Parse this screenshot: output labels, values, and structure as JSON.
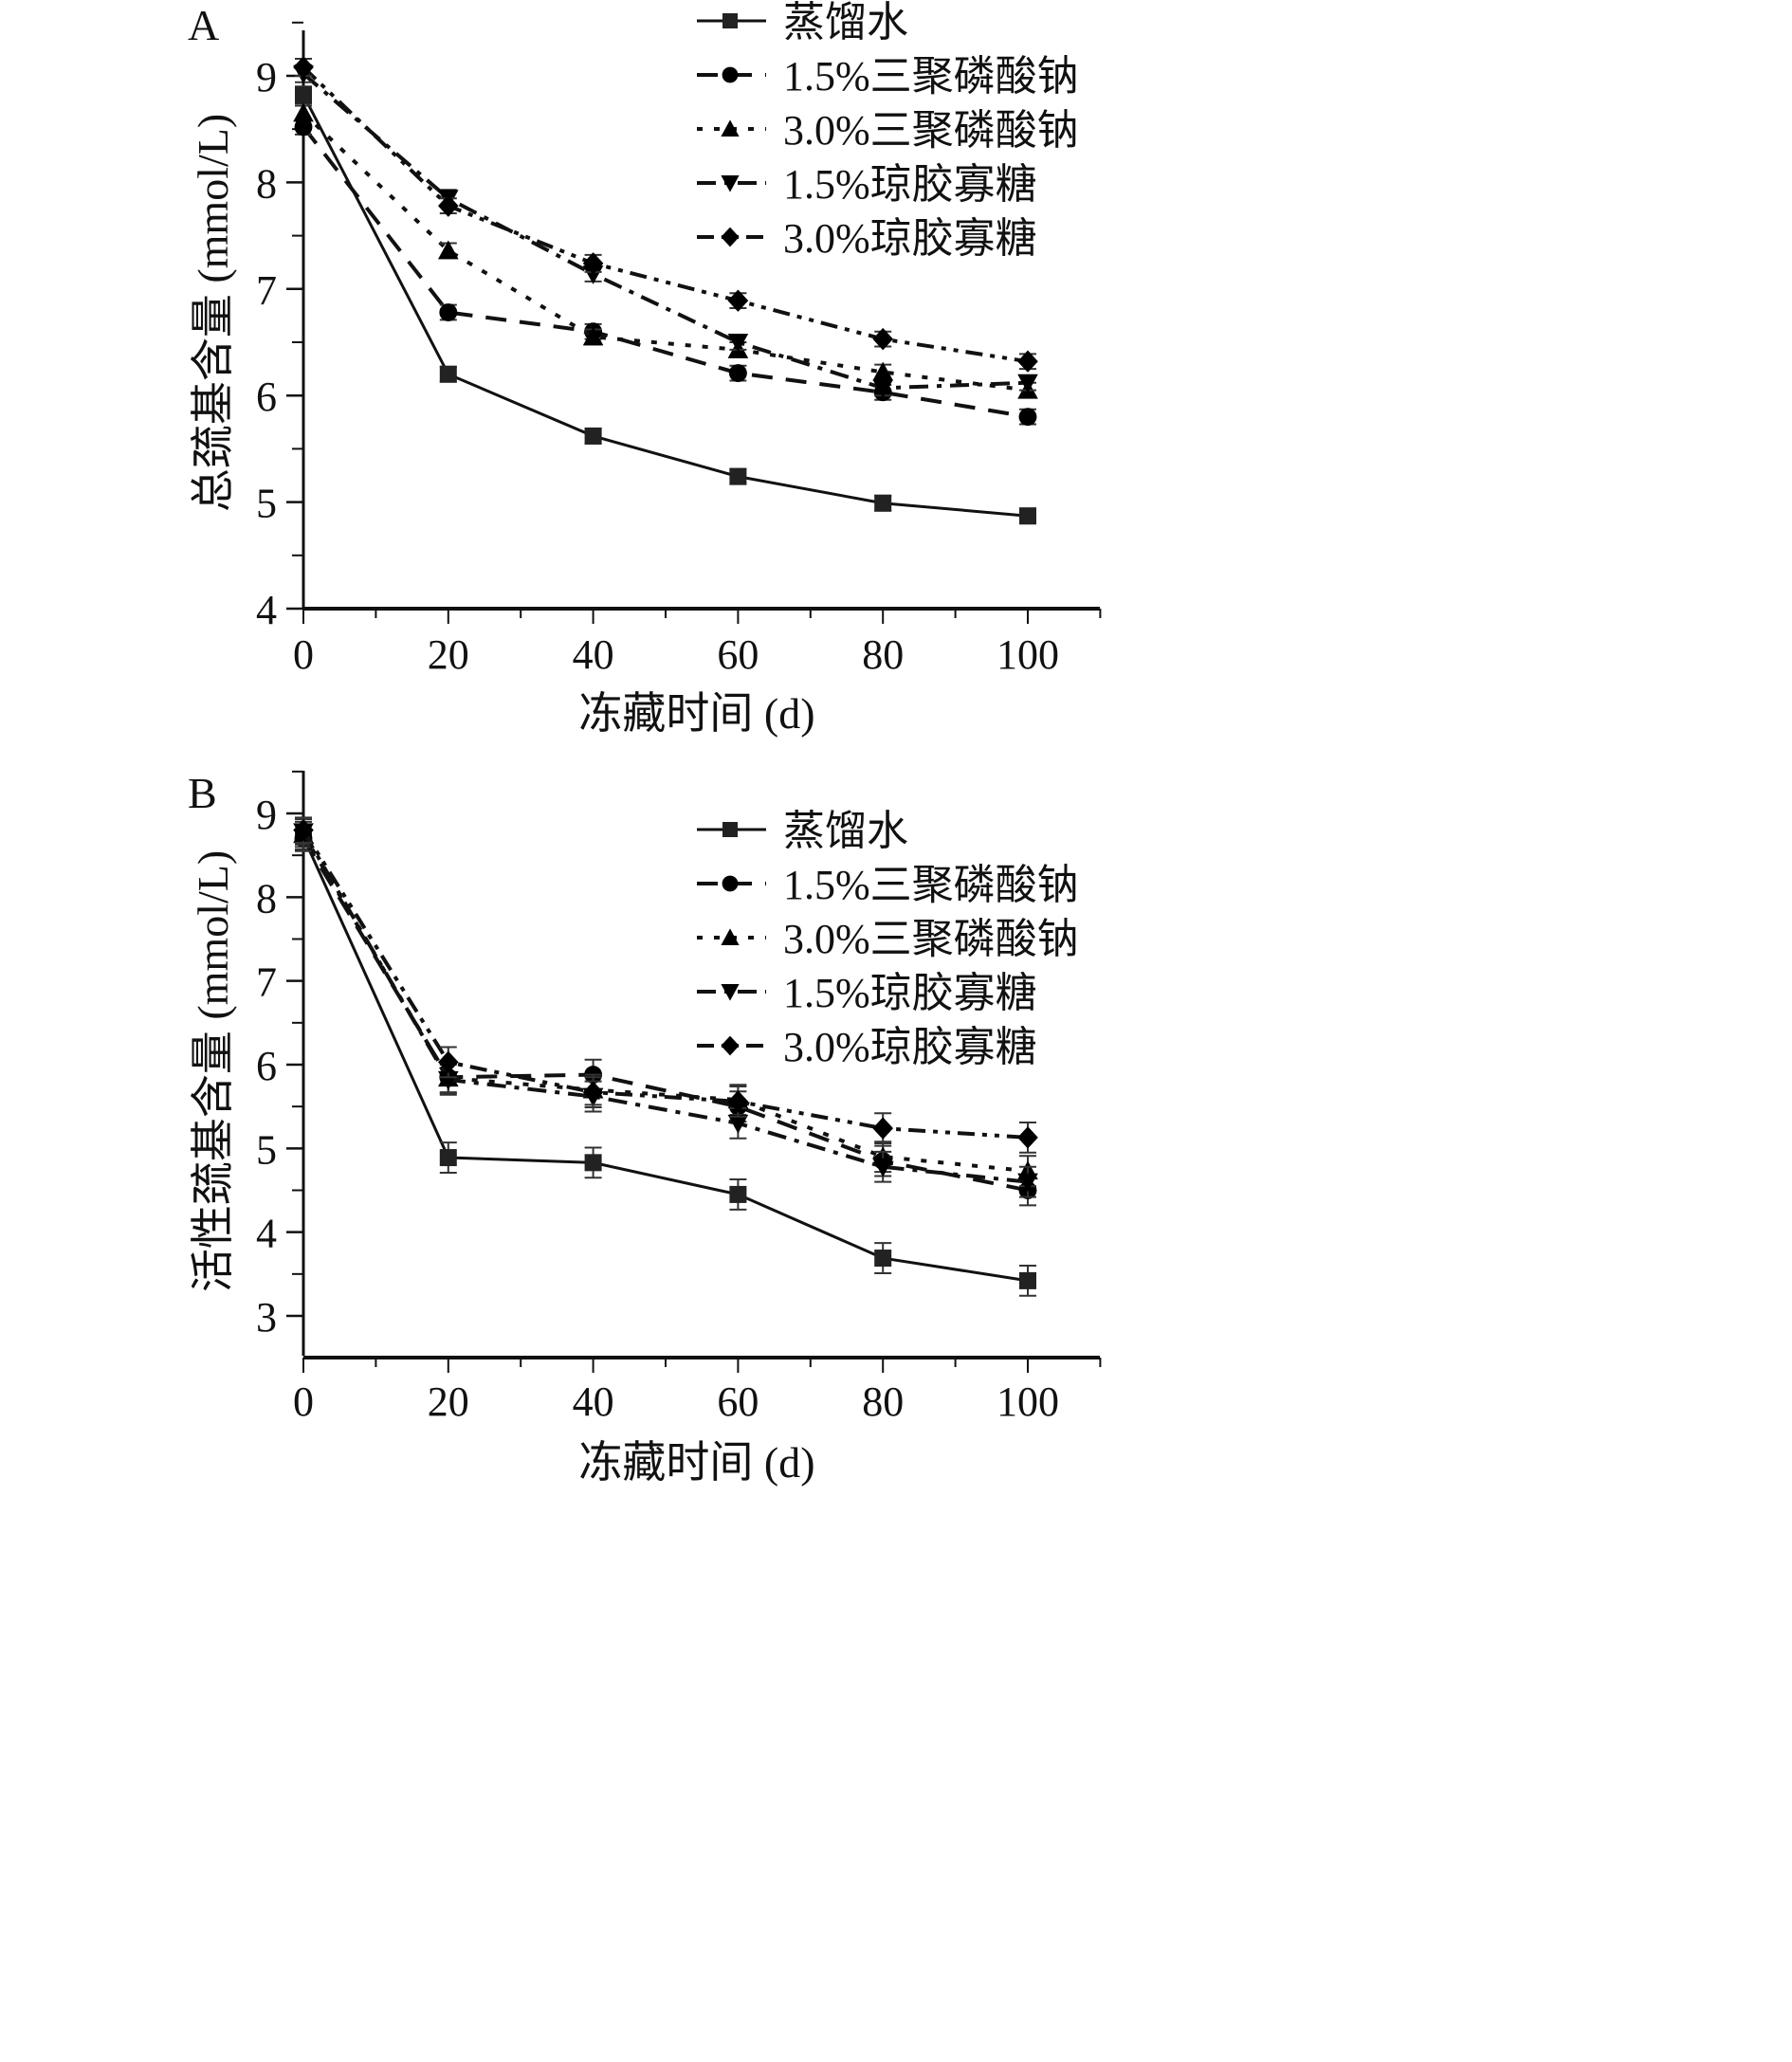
{
  "chart_data": [
    {
      "panel": "A",
      "type": "line",
      "title": "",
      "xlabel": "冻藏时间 (d)",
      "ylabel": "总巯基含量 (mmol/L)",
      "xlim": [
        0,
        110
      ],
      "ylim": [
        4,
        9.5
      ],
      "x_ticks": [
        0,
        20,
        40,
        60,
        80,
        100
      ],
      "y_ticks": [
        4,
        5,
        6,
        7,
        8,
        9
      ],
      "grid": false,
      "legend_position": "top-right",
      "x": [
        0,
        20,
        40,
        60,
        80,
        100
      ],
      "series": [
        {
          "name": "蒸馏水",
          "marker": "square",
          "line": "solid",
          "values": [
            8.82,
            6.2,
            5.62,
            5.24,
            4.99,
            4.87
          ],
          "errors": [
            0.08,
            0.07,
            0.07,
            0.07,
            0.07,
            0.07
          ]
        },
        {
          "name": "1.5%三聚磷酸钠",
          "marker": "circle",
          "line": "dash",
          "values": [
            8.52,
            6.78,
            6.6,
            6.21,
            6.03,
            5.8
          ],
          "errors": [
            0.07,
            0.07,
            0.07,
            0.07,
            0.07,
            0.07
          ]
        },
        {
          "name": "3.0%三聚磷酸钠",
          "marker": "triangle-up",
          "line": "dot",
          "values": [
            8.65,
            7.36,
            6.55,
            6.43,
            6.22,
            6.05
          ],
          "errors": [
            0.07,
            0.07,
            0.07,
            0.07,
            0.07,
            0.07
          ]
        },
        {
          "name": "1.5%琼胶寡糖",
          "marker": "triangle-down",
          "line": "dash-dot",
          "values": [
            9.02,
            7.85,
            7.14,
            6.5,
            6.07,
            6.12
          ],
          "errors": [
            0.08,
            0.08,
            0.07,
            0.07,
            0.07,
            0.07
          ]
        },
        {
          "name": "3.0%琼胶寡糖",
          "marker": "diamond",
          "line": "dash-dot-dot",
          "values": [
            9.08,
            7.78,
            7.24,
            6.89,
            6.53,
            6.32
          ],
          "errors": [
            0.08,
            0.07,
            0.08,
            0.07,
            0.07,
            0.07
          ]
        }
      ]
    },
    {
      "panel": "B",
      "type": "line",
      "title": "",
      "xlabel": "冻藏时间 (d)",
      "ylabel": "活性巯基含量 (mmol/L)",
      "xlim": [
        0,
        110
      ],
      "ylim": [
        2.5,
        9.5
      ],
      "x_ticks": [
        0,
        20,
        40,
        60,
        80,
        100
      ],
      "y_ticks": [
        3,
        4,
        5,
        6,
        7,
        8,
        9
      ],
      "grid": false,
      "legend_position": "top-right",
      "x": [
        0,
        20,
        40,
        60,
        80,
        100
      ],
      "series": [
        {
          "name": "蒸馏水",
          "marker": "square",
          "line": "solid",
          "values": [
            8.72,
            4.89,
            4.83,
            4.45,
            3.69,
            3.42
          ],
          "errors": [
            0.15,
            0.18,
            0.18,
            0.18,
            0.18,
            0.18
          ]
        },
        {
          "name": "1.5%三聚磷酸钠",
          "marker": "circle",
          "line": "dash",
          "values": [
            8.7,
            5.85,
            5.88,
            5.5,
            4.85,
            4.5
          ],
          "errors": [
            0.15,
            0.18,
            0.18,
            0.18,
            0.18,
            0.18
          ]
        },
        {
          "name": "3.0%三聚磷酸钠",
          "marker": "triangle-up",
          "line": "dot",
          "values": [
            8.75,
            5.84,
            5.7,
            5.58,
            4.9,
            4.73
          ],
          "errors": [
            0.15,
            0.18,
            0.18,
            0.18,
            0.18,
            0.18
          ]
        },
        {
          "name": "1.5%琼胶寡糖",
          "marker": "triangle-down",
          "line": "dash-dot",
          "values": [
            8.78,
            5.82,
            5.62,
            5.3,
            4.78,
            4.6
          ],
          "errors": [
            0.15,
            0.18,
            0.18,
            0.18,
            0.18,
            0.18
          ]
        },
        {
          "name": "3.0%琼胶寡糖",
          "marker": "diamond",
          "line": "dash-dot-dot",
          "values": [
            8.8,
            6.03,
            5.67,
            5.56,
            5.24,
            5.13
          ],
          "errors": [
            0.15,
            0.18,
            0.18,
            0.18,
            0.18,
            0.18
          ]
        }
      ]
    }
  ]
}
